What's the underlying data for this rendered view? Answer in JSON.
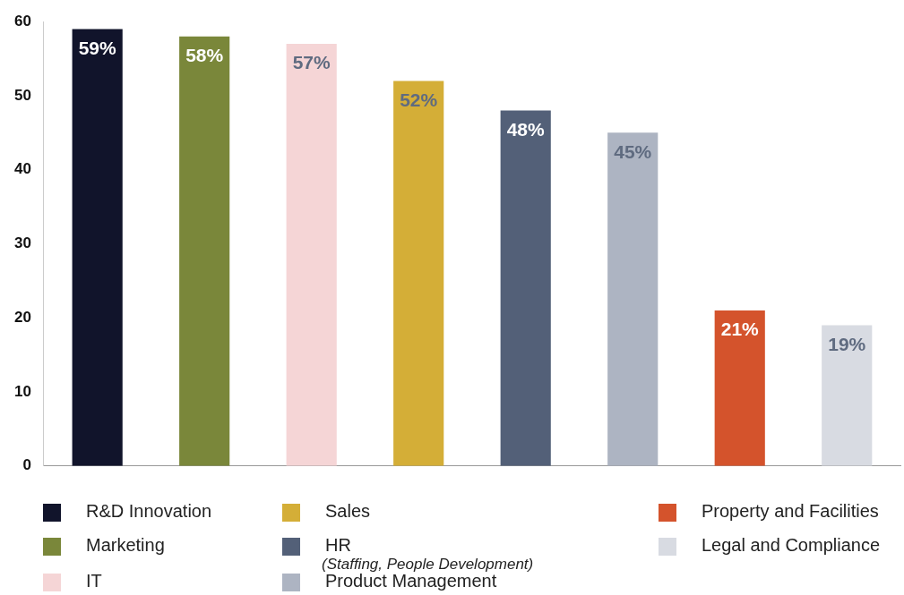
{
  "chart_data": {
    "type": "bar",
    "categories": [
      null,
      null,
      null,
      null,
      null,
      null,
      null,
      null
    ],
    "series": [
      {
        "name": "R&D Innovation",
        "color": "#11142b",
        "values": [
          59,
          null,
          null,
          null,
          null,
          null,
          null,
          null
        ],
        "value_labels": [
          "59%",
          null,
          null,
          null,
          null,
          null,
          null,
          null
        ]
      },
      {
        "name": "Marketing",
        "color": "#7a873a",
        "values": [
          null,
          58,
          null,
          null,
          null,
          null,
          null,
          null
        ],
        "value_labels": [
          null,
          "58%",
          null,
          null,
          null,
          null,
          null,
          null
        ]
      },
      {
        "name": "IT",
        "color": "#f5d5d6",
        "values": [
          null,
          null,
          57,
          null,
          null,
          null,
          null,
          null
        ],
        "value_labels": [
          null,
          null,
          "57%",
          null,
          null,
          null,
          null,
          null
        ]
      },
      {
        "name": "Sales",
        "color": "#d4ae37",
        "values": [
          null,
          null,
          null,
          52,
          null,
          null,
          null,
          null
        ],
        "value_labels": [
          null,
          null,
          null,
          "52%",
          null,
          null,
          null,
          null
        ]
      },
      {
        "name": "HR\n(Staffing, People Development)",
        "color": "#536078",
        "values": [
          null,
          null,
          null,
          null,
          48,
          null,
          null,
          null
        ],
        "value_labels": [
          null,
          null,
          null,
          null,
          "48%",
          null,
          null,
          null
        ]
      },
      {
        "name": "Product Management",
        "color": "#adb4c2",
        "values": [
          null,
          null,
          null,
          null,
          null,
          45,
          null,
          null
        ],
        "value_labels": [
          null,
          null,
          null,
          null,
          null,
          "45%",
          null,
          null
        ]
      },
      {
        "name": "Property and Facilities",
        "color": "#d4532c",
        "values": [
          null,
          null,
          null,
          null,
          null,
          null,
          21,
          null
        ],
        "value_labels": [
          null,
          null,
          null,
          null,
          null,
          null,
          "21%",
          null
        ]
      },
      {
        "name": "Legal and Compliance",
        "color": "#d8dbe2",
        "values": [
          null,
          null,
          null,
          null,
          null,
          null,
          null,
          19
        ],
        "value_labels": [
          null,
          null,
          null,
          null,
          null,
          null,
          null,
          "19%"
        ]
      }
    ],
    "ylim": [
      0,
      60
    ],
    "yticks": [
      0,
      10,
      20,
      30,
      40,
      50,
      60
    ],
    "grid": false,
    "legend": "bottom"
  }
}
